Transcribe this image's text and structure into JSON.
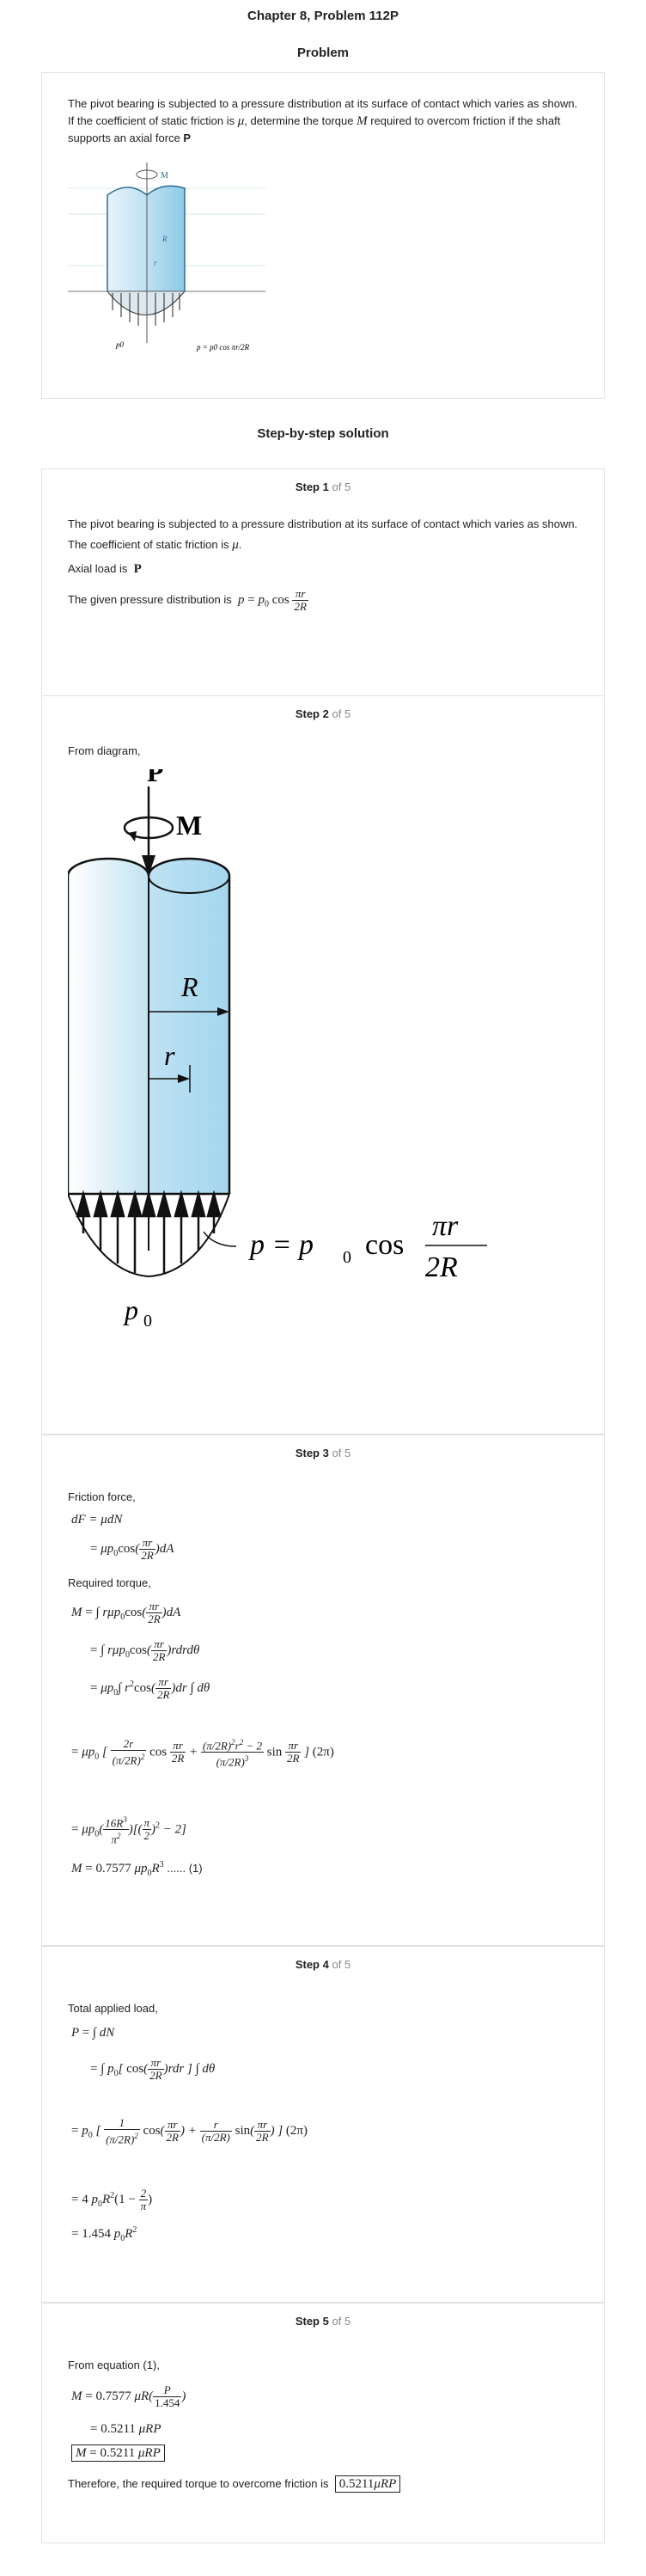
{
  "header": {
    "title": "Chapter 8, Problem 112P",
    "problem_heading": "Problem"
  },
  "problem": {
    "text_before_mu": "The pivot bearing is subjected to a pressure distribution at its surface of contact which varies as shown. If the coefficient of static friction is",
    "mu": "μ",
    "text_between": ", determine the torque",
    "M": "M",
    "text_after_M": "required to overcom friction if the shaft supports an axial force",
    "P": "P",
    "figure_labels": {
      "P": "P",
      "M": "M",
      "R": "R",
      "r": "r",
      "p0": "p0",
      "formula": "p = p0 cos πr/2R"
    }
  },
  "solution_heading": "Step-by-step solution",
  "step_word": "Step",
  "of_word": "of 5",
  "steps": [
    {
      "number": "1",
      "line1": "The pivot bearing is subjected to a pressure distribution at its surface of contact which varies as shown.",
      "line2": "The coefficient of static friction is",
      "line2_mu": "μ",
      "line2_end": ".",
      "line3": "Axial load is",
      "line3_P": "P",
      "line4": "The given pressure distribution is",
      "line4_eq": "p = p0 cos"
    },
    {
      "number": "2",
      "text": "From diagram,",
      "figure": {
        "P": "P",
        "M": "M",
        "R": "R",
        "r": "r",
        "p0": "p",
        "p0_sub": "0",
        "eq_lhs": "p = p",
        "eq_sub": "0",
        "eq_cos": "cos",
        "eq_num": "πr",
        "eq_den": "2R"
      }
    },
    {
      "number": "3",
      "text1": "Friction force,",
      "text2": "Required torque,",
      "result_tag": "...... (1)"
    },
    {
      "number": "4",
      "text1": "Total applied load,"
    },
    {
      "number": "5",
      "text1": "From equation (1),",
      "text2": "Therefore, the required torque to overcome friction is"
    }
  ],
  "colors": {
    "card_border": "#e2e2e2",
    "shaft_fill": "#a9d8ee",
    "accent_gray": "#888888"
  }
}
